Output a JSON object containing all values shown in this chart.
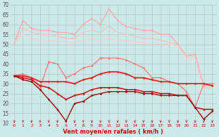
{
  "xlabel": "Vent moyen/en rafales ( km/h )",
  "background_color": "#cce8e8",
  "grid_color": "#b0c8c8",
  "xlim": [
    -0.5,
    23.5
  ],
  "ylim": [
    10,
    70
  ],
  "yticks": [
    10,
    15,
    20,
    25,
    30,
    35,
    40,
    45,
    50,
    55,
    60,
    65,
    70
  ],
  "xticks": [
    0,
    1,
    2,
    3,
    4,
    5,
    6,
    7,
    8,
    9,
    10,
    11,
    12,
    13,
    14,
    15,
    16,
    17,
    18,
    19,
    20,
    21,
    22,
    23
  ],
  "hours": [
    0,
    1,
    2,
    3,
    4,
    5,
    6,
    7,
    8,
    9,
    10,
    11,
    12,
    13,
    14,
    15,
    16,
    17,
    18,
    19,
    20,
    21,
    22,
    23
  ],
  "series": [
    {
      "label": "rafales_max",
      "color": "#ffaaaa",
      "linewidth": 1.0,
      "marker": "D",
      "markersize": 1.8,
      "values": [
        51,
        62,
        58,
        57,
        57,
        56,
        56,
        55,
        60,
        63,
        60,
        68,
        62,
        59,
        58,
        57,
        57,
        55,
        55,
        50,
        44,
        45,
        29,
        29
      ]
    },
    {
      "label": "rafales_moy",
      "color": "#ffbbbb",
      "linewidth": 0.8,
      "marker": null,
      "markersize": 0,
      "values": [
        51,
        58,
        56,
        55,
        55,
        54,
        53,
        53,
        56,
        57,
        56,
        59,
        56,
        55,
        54,
        53,
        53,
        52,
        51,
        50,
        44,
        44,
        28,
        28
      ]
    },
    {
      "label": "rafales_min",
      "color": "#ffcccc",
      "linewidth": 0.8,
      "marker": null,
      "markersize": 0,
      "values": [
        51,
        55,
        53,
        52,
        52,
        52,
        51,
        51,
        52,
        53,
        52,
        53,
        52,
        52,
        51,
        51,
        50,
        50,
        50,
        49,
        43,
        43,
        27,
        27
      ]
    },
    {
      "label": "vent_max",
      "color": "#ff7777",
      "linewidth": 0.9,
      "marker": "D",
      "markersize": 1.8,
      "values": [
        34,
        35,
        33,
        28,
        41,
        40,
        33,
        35,
        38,
        39,
        43,
        43,
        43,
        42,
        40,
        38,
        33,
        33,
        31,
        30,
        26,
        18,
        30,
        30
      ]
    },
    {
      "label": "vent_moy_line1",
      "color": "#dd2222",
      "linewidth": 1.3,
      "marker": "D",
      "markersize": 1.8,
      "values": [
        34,
        34,
        33,
        31,
        31,
        31,
        31,
        30,
        32,
        33,
        35,
        36,
        36,
        35,
        33,
        33,
        32,
        31,
        31,
        30,
        30,
        30,
        30,
        29
      ]
    },
    {
      "label": "vent_moy_line2",
      "color": "#cc0000",
      "linewidth": 1.1,
      "marker": "D",
      "markersize": 1.8,
      "values": [
        34,
        33,
        32,
        29,
        28,
        25,
        22,
        24,
        25,
        27,
        28,
        28,
        28,
        27,
        27,
        26,
        26,
        25,
        25,
        24,
        24,
        18,
        17,
        17
      ]
    },
    {
      "label": "vent_low",
      "color": "#990000",
      "linewidth": 1.0,
      "marker": "D",
      "markersize": 1.8,
      "values": [
        34,
        32,
        31,
        27,
        22,
        17,
        11,
        20,
        21,
        24,
        25,
        26,
        26,
        26,
        26,
        25,
        25,
        24,
        24,
        24,
        24,
        18,
        12,
        16
      ]
    }
  ],
  "arrow_color": "#cc2222",
  "xlabel_color": "#cc0000",
  "xlabel_fontsize": 6.0,
  "ytick_fontsize": 5.5,
  "xtick_fontsize": 4.5
}
